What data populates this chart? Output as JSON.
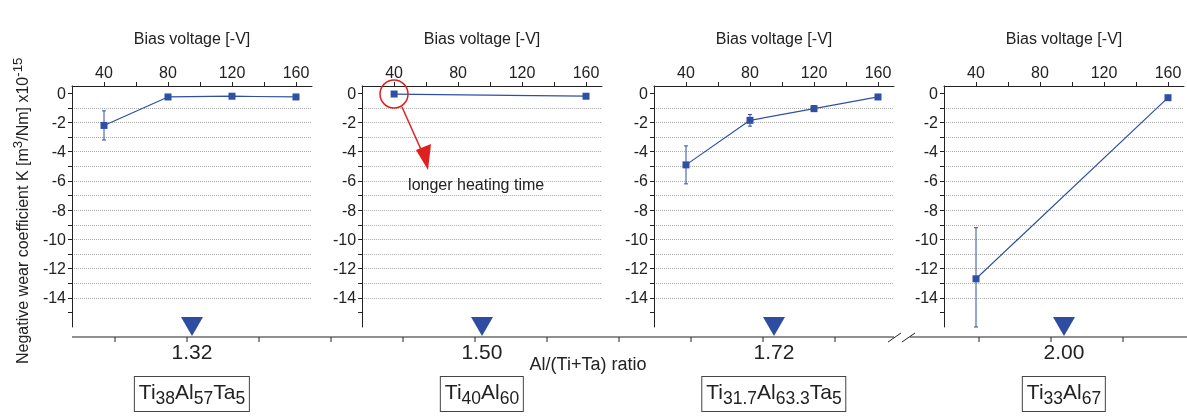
{
  "chart_data": [
    {
      "type": "line",
      "xlabel": "Bias voltage [-V]",
      "ylabel": "Negative wear coefficient K [m$^{3}$/Nm] x10$^{-15}$",
      "x": [
        40,
        80,
        120,
        160
      ],
      "series": [
        {
          "color": "#2f4fa5",
          "values": [
            -2.2,
            -0.25,
            -0.2,
            -0.25
          ],
          "errors": [
            1,
            null,
            null,
            null
          ]
        }
      ],
      "xlim": [
        20,
        170
      ],
      "xticks": [
        40,
        {
          "value": 60,
          "label": null
        },
        80,
        {
          "value": 100,
          "label": null
        },
        120,
        {
          "value": 140,
          "label": null
        },
        160
      ],
      "ylim": [
        -16,
        0.5
      ],
      "yticks": [
        0,
        {
          "value": -1,
          "label": null
        },
        -2,
        {
          "value": -3,
          "label": null
        },
        -4,
        {
          "value": -5,
          "label": null
        },
        -6,
        {
          "value": -7,
          "label": null
        },
        -8,
        {
          "value": -9,
          "label": null
        },
        -10,
        {
          "value": -11,
          "label": null
        },
        -12,
        {
          "value": -13,
          "label": null
        },
        -14,
        {
          "value": -15,
          "label": null
        }
      ],
      "grid": "y",
      "marker": "square",
      "line_style": "solid",
      "annotations": [
        "1.32",
        "Ti$_{38}$Al$_{57}$Ta$_{5}$"
      ]
    },
    {
      "type": "line",
      "xlabel": "Bias voltage [-V]",
      "x": [
        40,
        160
      ],
      "series": [
        {
          "color": "#2f4fa5",
          "values": [
            -0.05,
            -0.2
          ]
        }
      ],
      "xlim": [
        20,
        170
      ],
      "xticks": [
        40,
        {
          "value": 60,
          "label": null
        },
        80,
        {
          "value": 100,
          "label": null
        },
        120,
        {
          "value": 140,
          "label": null
        },
        160
      ],
      "ylim": [
        -16,
        0.5
      ],
      "yticks": [
        0,
        {
          "value": -1,
          "label": null
        },
        -2,
        {
          "value": -3,
          "label": null
        },
        -4,
        {
          "value": -5,
          "label": null
        },
        -6,
        {
          "value": -7,
          "label": null
        },
        -8,
        {
          "value": -9,
          "label": null
        },
        -10,
        {
          "value": -11,
          "label": null
        },
        -12,
        {
          "value": -13,
          "label": null
        },
        -14,
        {
          "value": -15,
          "label": null
        }
      ],
      "grid": "y",
      "marker": "square",
      "line_style": "solid",
      "annotations": [
        "1.50",
        "Ti$_{40}$Al$_{60}$",
        "longer heating time",
        "Al/(Ti+Ta) ratio"
      ]
    },
    {
      "type": "line",
      "xlabel": "Bias voltage [-V]",
      "x": [
        40,
        80,
        120,
        160
      ],
      "series": [
        {
          "color": "#2f4fa5",
          "values": [
            -4.9,
            -1.85,
            -1.05,
            -0.25
          ],
          "errors": [
            1.3,
            0.4,
            0.2,
            null
          ]
        }
      ],
      "xlim": [
        20,
        170
      ],
      "xticks": [
        40,
        {
          "value": 60,
          "label": null
        },
        80,
        {
          "value": 100,
          "label": null
        },
        120,
        {
          "value": 140,
          "label": null
        },
        160
      ],
      "ylim": [
        -16,
        0.5
      ],
      "yticks": [
        0,
        {
          "value": -1,
          "label": null
        },
        -2,
        {
          "value": -3,
          "label": null
        },
        -4,
        {
          "value": -5,
          "label": null
        },
        -6,
        {
          "value": -7,
          "label": null
        },
        -8,
        {
          "value": -9,
          "label": null
        },
        -10,
        {
          "value": -11,
          "label": null
        },
        -12,
        {
          "value": -13,
          "label": null
        },
        -14,
        {
          "value": -15,
          "label": null
        }
      ],
      "grid": "y",
      "marker": "square",
      "line_style": "solid",
      "annotations": [
        "1.72",
        "Ti$_{31.7}$Al$_{63.3}$Ta$_{5}$"
      ]
    },
    {
      "type": "line",
      "xlabel": "Bias voltage [-V]",
      "x": [
        40,
        160
      ],
      "series": [
        {
          "color": "#2f4fa5",
          "values": [
            -12.7,
            -0.3
          ],
          "errors": [
            [
              -16,
              -9.2
            ],
            null
          ]
        }
      ],
      "xlim": [
        20,
        170
      ],
      "xticks": [
        40,
        {
          "value": 60,
          "label": null
        },
        80,
        {
          "value": 100,
          "label": null
        },
        120,
        {
          "value": 140,
          "label": null
        },
        160
      ],
      "ylim": [
        -16,
        0.5
      ],
      "yticks": [
        0,
        {
          "value": -1,
          "label": null
        },
        -2,
        {
          "value": -3,
          "label": null
        },
        -4,
        {
          "value": -5,
          "label": null
        },
        -6,
        {
          "value": -7,
          "label": null
        },
        -8,
        {
          "value": -9,
          "label": null
        },
        -10,
        {
          "value": -11,
          "label": null
        },
        -12,
        {
          "value": -13,
          "label": null
        },
        -14,
        {
          "value": -15,
          "label": null
        }
      ],
      "grid": "y",
      "marker": "square",
      "line_style": "solid",
      "annotations": [
        "2.00",
        "Ti$_{33}$Al$_{67}$"
      ]
    }
  ]
}
